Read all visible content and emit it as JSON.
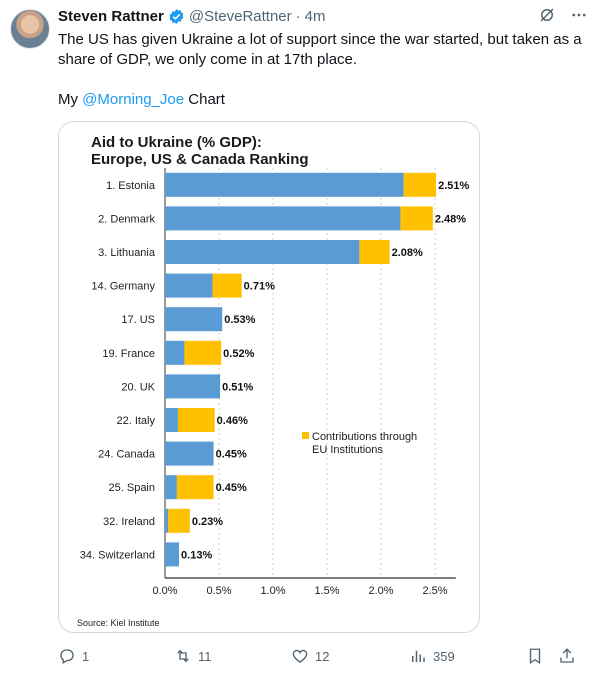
{
  "tweet": {
    "author_name": "Steven Rattner",
    "handle": "@SteveRattner",
    "dot": "·",
    "time": "4m",
    "text_main": "The US has given Ukraine a lot of support since the war started, but taken as a share of GDP, we only come in at 17th place.",
    "text_prefix": "My ",
    "mention": "@Morning_Joe",
    "text_suffix": " Chart"
  },
  "icons": {
    "verified": "verified-badge-icon",
    "grok": "grok-icon",
    "more": "more-icon",
    "reply": "reply-icon",
    "retweet": "retweet-icon",
    "like": "like-icon",
    "views": "views-icon",
    "bookmark": "bookmark-icon",
    "share": "share-icon"
  },
  "colors": {
    "accent": "#1d9bf0",
    "us_share": "#5b9bd5",
    "eu_share": "#ffc000"
  },
  "actions": {
    "replies": "1",
    "retweets": "11",
    "likes": "12",
    "views": "359"
  },
  "chart_data": {
    "type": "bar",
    "title_line1": "Aid to Ukraine (% GDP):",
    "title_line2": "Europe, US & Canada Ranking",
    "source": "Source: Kiel Institute",
    "legend": [
      "Contributions through",
      "EU Institutions"
    ],
    "categories": [
      "1. Estonia",
      "2. Denmark",
      "3. Lithuania",
      "14. Germany",
      "17. US",
      "19. France",
      "20. UK",
      "22. Italy",
      "24. Canada",
      "25. Spain",
      "32. Ireland",
      "34. Switzerland"
    ],
    "series": [
      {
        "name": "",
        "values": [
          2.21,
          2.18,
          1.8,
          0.44,
          0.53,
          0.18,
          0.51,
          0.12,
          0.45,
          0.11,
          0.03,
          0.13
        ]
      },
      {
        "name": "Contributions through EU Institutions",
        "values": [
          0.3,
          0.3,
          0.28,
          0.27,
          0.0,
          0.34,
          0.0,
          0.34,
          0.0,
          0.34,
          0.2,
          0.0
        ]
      }
    ],
    "totals": [
      "2.51%",
      "2.48%",
      "2.08%",
      "0.71%",
      "0.53%",
      "0.52%",
      "0.51%",
      "0.46%",
      "0.45%",
      "0.45%",
      "0.23%",
      "0.13%"
    ],
    "xticks": [
      "0.0%",
      "0.5%",
      "1.0%",
      "1.5%",
      "2.0%",
      "2.5%"
    ],
    "xtick_values": [
      0,
      0.5,
      1.0,
      1.5,
      2.0,
      2.5
    ],
    "xlim": [
      0,
      2.6
    ],
    "stacked": true,
    "grid": "vertical-dashed",
    "legend_position": "right-middle"
  }
}
